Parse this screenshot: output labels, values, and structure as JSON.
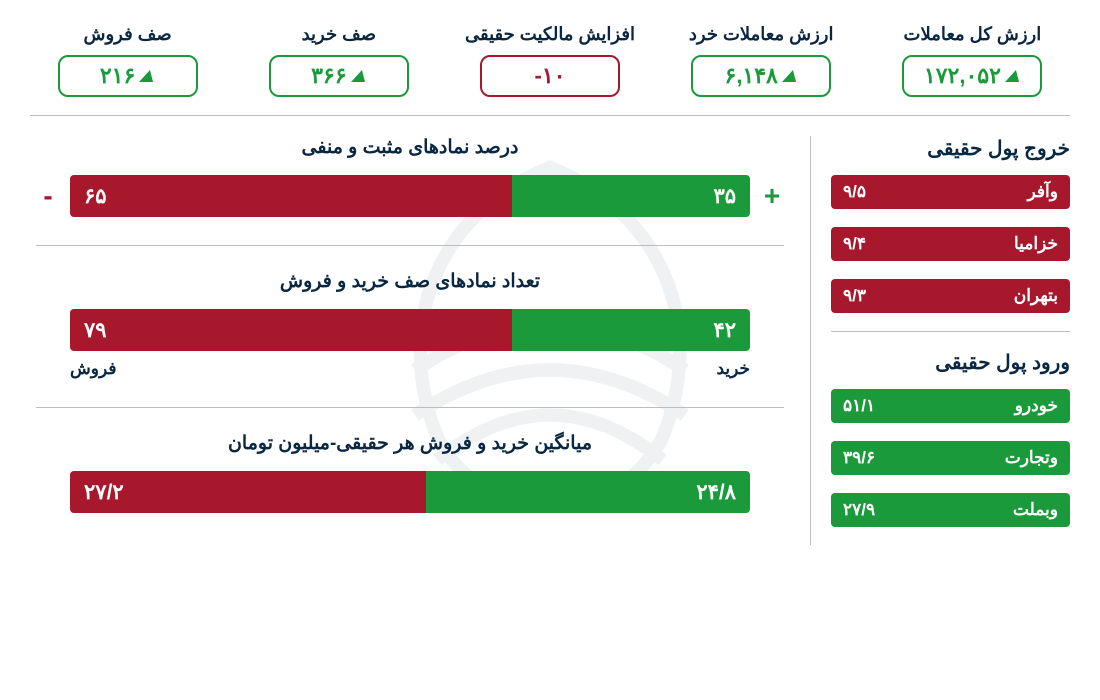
{
  "colors": {
    "green": "#1a9a3a",
    "red": "#a8182c",
    "text": "#0a2742",
    "divider": "#bdbdbd",
    "bg": "#ffffff"
  },
  "top": [
    {
      "label": "ارزش کل معاملات",
      "value": "۱۷۲,۰۵۲",
      "tone": "green",
      "arrow": true
    },
    {
      "label": "ارزش معاملات خرد",
      "value": "۶,۱۴۸",
      "tone": "green",
      "arrow": true
    },
    {
      "label": "افزایش مالکیت حقیقی",
      "value": "۱۰-",
      "tone": "red",
      "arrow": false
    },
    {
      "label": "صف خرید",
      "value": "۳۶۶",
      "tone": "green",
      "arrow": true
    },
    {
      "label": "صف فروش",
      "value": "۲۱۶",
      "tone": "green",
      "arrow": true
    }
  ],
  "sidebar": {
    "outflow": {
      "title": "خروج پول حقیقی",
      "items": [
        {
          "name": "وآفر",
          "value": "۹/۵"
        },
        {
          "name": "خزامیا",
          "value": "۹/۴"
        },
        {
          "name": "بتهران",
          "value": "۹/۳"
        }
      ]
    },
    "inflow": {
      "title": "ورود پول حقیقی",
      "items": [
        {
          "name": "خودرو",
          "value": "۵۱/۱"
        },
        {
          "name": "وتجارت",
          "value": "۳۹/۶"
        },
        {
          "name": "وبملت",
          "value": "۲۷/۹"
        }
      ]
    }
  },
  "charts": {
    "c1": {
      "title": "درصد نمادهای مثبت و منفی",
      "type": "stacked-bar",
      "green_label": "۳۵",
      "green_pct": 35,
      "red_label": "۶۵",
      "red_pct": 65,
      "show_signs": true
    },
    "c2": {
      "title": "تعداد نمادهای صف خرید و فروش",
      "type": "stacked-bar",
      "green_label": "۴۲",
      "green_pct": 35,
      "red_label": "۷۹",
      "red_pct": 65,
      "below_right": "خرید",
      "below_left": "فروش"
    },
    "c3": {
      "title": "میانگین خرید و فروش هر حقیقی-میلیون تومان",
      "type": "stacked-bar",
      "green_label": "۲۴/۸",
      "green_pct": 47.7,
      "red_label": "۲۷/۲",
      "red_pct": 52.3
    }
  }
}
